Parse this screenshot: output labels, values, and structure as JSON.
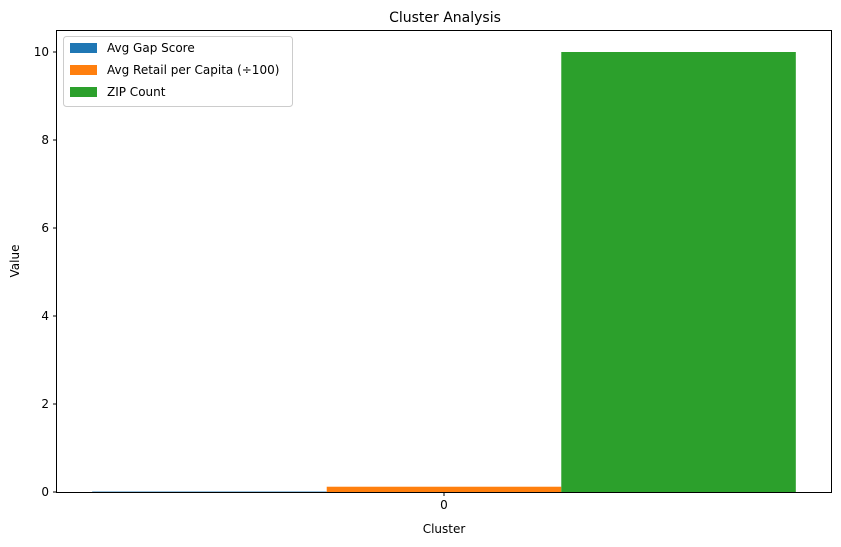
{
  "chart_data": {
    "type": "bar",
    "title": "Cluster Analysis",
    "xlabel": "Cluster",
    "ylabel": "Value",
    "categories": [
      "0"
    ],
    "ylim": [
      0,
      10.5
    ],
    "yticks": [
      0,
      2,
      4,
      6,
      8,
      10
    ],
    "grid": false,
    "legend_position": "top-left",
    "series": [
      {
        "name": "Avg Gap Score",
        "color": "#1f77b4",
        "values": [
          0.01
        ]
      },
      {
        "name": "Avg Retail per Capita (÷100)",
        "color": "#ff7f0e",
        "values": [
          0.12
        ]
      },
      {
        "name": "ZIP Count",
        "color": "#2ca02c",
        "values": [
          10
        ]
      }
    ]
  }
}
